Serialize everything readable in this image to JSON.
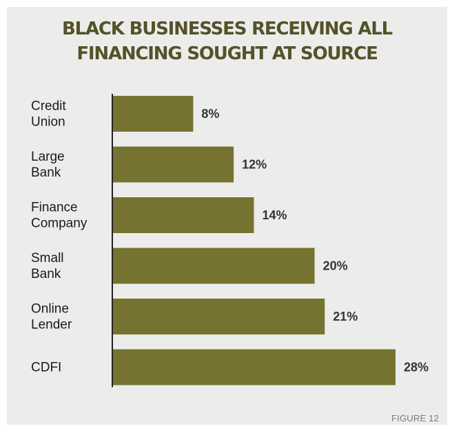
{
  "chart_data": {
    "type": "bar",
    "orientation": "horizontal",
    "title": [
      "BLACK BUSINESSES RECEIVING ALL",
      "FINANCING SOUGHT AT SOURCE"
    ],
    "categories": [
      [
        "Credit",
        "Union"
      ],
      [
        "Large",
        "Bank"
      ],
      [
        "Finance",
        "Company"
      ],
      [
        "Small",
        "Bank"
      ],
      [
        "Online",
        "Lender"
      ],
      [
        "CDFI"
      ]
    ],
    "values": [
      8,
      12,
      14,
      20,
      21,
      28
    ],
    "value_labels": [
      "8%",
      "12%",
      "14%",
      "20%",
      "21%",
      "28%"
    ],
    "unit": "%",
    "xlim": [
      0,
      28
    ],
    "grid": false,
    "legend": "none",
    "colors": {
      "bar": "#767331",
      "title": "#545229",
      "background": "#ececeb",
      "axis": "#222222"
    }
  },
  "figure_label": "FIGURE 12"
}
